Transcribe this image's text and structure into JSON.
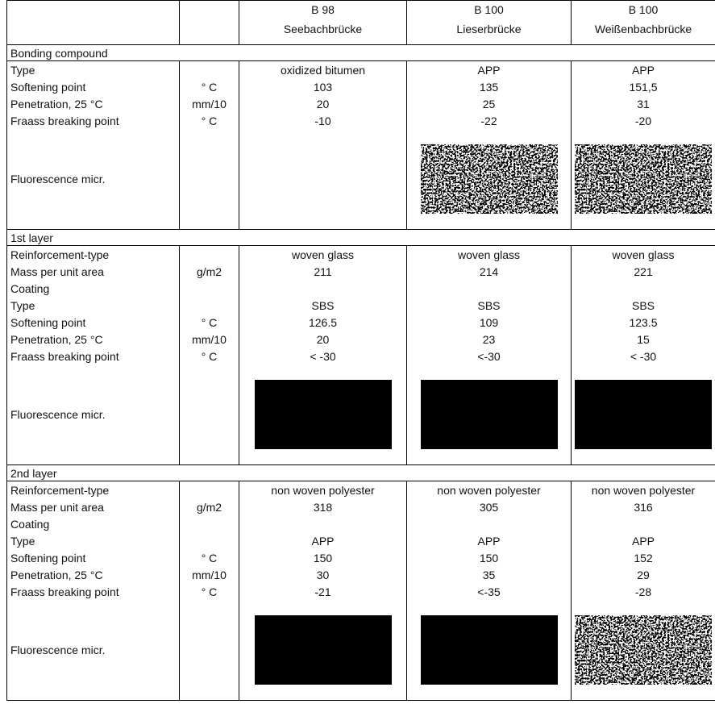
{
  "table": {
    "columns": [
      {
        "code": "B 98",
        "name": "Seebachbrücke"
      },
      {
        "code": "B 100",
        "name": "Lieserbrücke"
      },
      {
        "code": "B 100",
        "name": "Weißenbachbrücke"
      }
    ],
    "sections": [
      {
        "title": "Bonding compound",
        "rows": [
          [
            "Type",
            null,
            "oxidized bitumen",
            "APP",
            "APP"
          ],
          [
            "Softening point",
            "° C",
            "103",
            "135",
            "151,5"
          ],
          [
            "Penetration, 25 °C",
            "mm/10",
            "20",
            "25",
            "31"
          ],
          [
            "Fraass breaking point",
            "° C",
            "-10",
            "-22",
            "-20"
          ],
          [
            "Fluorescence micr.",
            null,
            null,
            null,
            null
          ]
        ]
      },
      {
        "title": "1st layer",
        "rows": [
          [
            "Reinforcement-type",
            null,
            "woven glass",
            "woven glass",
            "woven glass"
          ],
          [
            "Mass per unit area",
            "g/m2",
            "211",
            "214",
            "221"
          ],
          [
            "Coating",
            null,
            null,
            null,
            null
          ],
          [
            "Type",
            null,
            "SBS",
            "SBS",
            "SBS"
          ],
          [
            "Softening point",
            "° C",
            "126.5",
            "109",
            "123.5"
          ],
          [
            "Penetration, 25 °C",
            "mm/10",
            "20",
            "23",
            "15"
          ],
          [
            "Fraass breaking point",
            "° C",
            "< -30",
            "<-30",
            "< -30"
          ],
          [
            "Fluorescence micr.",
            null,
            null,
            null,
            null
          ]
        ]
      },
      {
        "title": "2nd layer",
        "rows": [
          [
            "Reinforcement-type",
            null,
            "non woven polyester",
            "non woven polyester",
            "non woven polyester"
          ],
          [
            "Mass per unit area",
            "g/m2",
            "318",
            "305",
            "316"
          ],
          [
            "Coating",
            null,
            null,
            null,
            null
          ],
          [
            "Type",
            null,
            "APP",
            "APP",
            "APP"
          ],
          [
            "Softening point",
            "° C",
            "150",
            "150",
            "152"
          ],
          [
            "Penetration, 25 °C",
            "mm/10",
            "30",
            "35",
            "29"
          ],
          [
            "Fraass breaking point",
            "° C",
            "-21",
            "<-35",
            "-28"
          ],
          [
            "Fluorescence micr.",
            null,
            null,
            null,
            null
          ]
        ]
      }
    ]
  }
}
